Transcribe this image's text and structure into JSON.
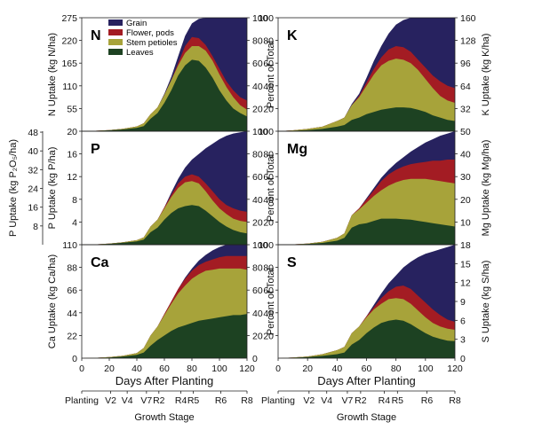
{
  "legend": [
    {
      "name": "Grain",
      "color": "#27225f"
    },
    {
      "name": "Flower, pods",
      "color": "#a31c23"
    },
    {
      "name": "Stem petioles",
      "color": "#a7a33a"
    },
    {
      "name": "Leaves",
      "color": "#1d4222"
    }
  ],
  "chart_data": {
    "type": "area",
    "x_label": "Days After Planting",
    "x_ticks": [
      0,
      20,
      40,
      60,
      80,
      100,
      120
    ],
    "percent_axis": {
      "label": "Percent of Total",
      "ticks": [
        0,
        20,
        40,
        60,
        80,
        100
      ]
    },
    "growth_stage": {
      "label": "Growth Stage",
      "stages": [
        {
          "name": "Planting",
          "day": 0
        },
        {
          "name": "V2",
          "day": 21
        },
        {
          "name": "V4",
          "day": 33
        },
        {
          "name": "V7",
          "day": 47
        },
        {
          "name": "R2",
          "day": 56
        },
        {
          "name": "R4",
          "day": 72
        },
        {
          "name": "R5",
          "day": 81
        },
        {
          "name": "R6",
          "day": 101
        },
        {
          "name": "R8",
          "day": 120
        }
      ]
    },
    "days": [
      0,
      10,
      20,
      30,
      40,
      45,
      50,
      55,
      60,
      65,
      70,
      75,
      80,
      85,
      90,
      95,
      100,
      105,
      110,
      115,
      120
    ],
    "panels": [
      {
        "id": "N",
        "title": "N",
        "left_label": "N Uptake (kg N/ha)",
        "left_ticks": [
          "55",
          "110",
          "165",
          "220",
          "275"
        ],
        "leaves": [
          0,
          0.3,
          0.8,
          1.6,
          3,
          4.5,
          11,
          16,
          25,
          36,
          49,
          58,
          63,
          62,
          56,
          47,
          36,
          27,
          20,
          16,
          13
        ],
        "stem": [
          0,
          0.4,
          1,
          2.2,
          4.2,
          7,
          15,
          21,
          32,
          45,
          58,
          69,
          75,
          75,
          71,
          62,
          50,
          39,
          30,
          23,
          19
        ],
        "flower": [
          0,
          0.4,
          1,
          2.2,
          4.2,
          7,
          15,
          21,
          32,
          45,
          60,
          75,
          83,
          82,
          76,
          66,
          55,
          44,
          36,
          30,
          27
        ],
        "grain": [
          0,
          0.4,
          1,
          2.2,
          4.2,
          7,
          15,
          21,
          33,
          48,
          66,
          84,
          95,
          99,
          100,
          100,
          100,
          100,
          100,
          100,
          100
        ]
      },
      {
        "id": "K",
        "title": "K",
        "left_ticks": [
          "20",
          "40",
          "60",
          "80",
          "100"
        ],
        "right_label": "K Uptake (kg K/ha)",
        "right_ticks": [
          "32",
          "64",
          "96",
          "128",
          "160"
        ],
        "leaves": [
          0,
          0.4,
          1,
          2,
          4,
          5.5,
          10,
          12,
          15,
          17,
          19,
          20,
          21,
          21,
          20.5,
          19,
          17,
          14,
          12,
          10,
          9
        ],
        "stem": [
          0,
          0.8,
          2,
          4,
          9,
          12,
          23,
          30,
          40,
          50,
          58,
          62,
          64,
          63,
          60,
          54,
          46,
          38,
          31,
          27,
          25
        ],
        "flower": [
          0,
          0.8,
          2,
          4,
          9,
          12,
          23,
          31,
          43,
          55,
          65,
          72,
          75,
          74,
          70,
          63,
          56,
          49,
          44,
          40,
          38
        ],
        "grain": [
          0,
          0.8,
          2,
          4,
          9,
          12,
          24,
          33,
          47,
          62,
          75,
          86,
          94,
          98,
          100,
          100,
          100,
          100,
          100,
          100,
          100
        ]
      },
      {
        "id": "P",
        "title": "P",
        "left_label": "P Uptake (kg P/ha)",
        "left_ticks": [
          "4",
          "8",
          "12",
          "16",
          "20"
        ],
        "outer_label": "P Uptake (kg P₂O₅/ha)",
        "outer_ticks": [
          "8",
          "16",
          "24",
          "32",
          "40",
          "48"
        ],
        "leaves": [
          0,
          0.2,
          0.8,
          1.7,
          3,
          4.5,
          11,
          15,
          22,
          28,
          32,
          34,
          35,
          34,
          30,
          25,
          20,
          16,
          13,
          11,
          10
        ],
        "stem": [
          0,
          0.3,
          1,
          2.2,
          4,
          6.5,
          16,
          22,
          32,
          42,
          50,
          55,
          56,
          54,
          47,
          39,
          32,
          27,
          23,
          21,
          20
        ],
        "flower": [
          0,
          0.3,
          1,
          2.2,
          4,
          6.5,
          16,
          22,
          33,
          44,
          54,
          60,
          62,
          60,
          54,
          47,
          40,
          35,
          32,
          30,
          29
        ],
        "grain": [
          0,
          0.3,
          1,
          2.2,
          4,
          6.5,
          16,
          22,
          33,
          46,
          58,
          68,
          75,
          80,
          85,
          89,
          93,
          96,
          98,
          99,
          100
        ]
      },
      {
        "id": "Mg",
        "title": "Mg",
        "left_ticks": [
          "20",
          "40",
          "60",
          "80",
          "100"
        ],
        "right_label": "Mg Uptake (kg Mg/ha)",
        "right_ticks": [
          "10",
          "20",
          "30",
          "40",
          "50"
        ],
        "leaves": [
          0,
          0.2,
          0.7,
          1.6,
          3.5,
          6,
          15,
          18,
          19,
          21,
          23,
          23,
          23,
          22.5,
          22,
          21,
          20,
          19,
          18,
          17,
          16
        ],
        "stem": [
          0,
          0.3,
          1,
          2.5,
          6,
          10,
          26,
          31,
          37,
          43,
          48,
          52,
          55,
          57,
          58,
          58,
          58,
          57,
          56,
          55,
          54
        ],
        "flower": [
          0,
          0.3,
          1,
          2.5,
          6,
          10,
          26,
          32,
          40,
          48,
          56,
          62,
          66,
          69,
          71,
          72,
          73,
          74,
          74,
          75,
          75
        ],
        "grain": [
          0,
          0.3,
          1,
          2.5,
          6,
          10,
          26,
          32,
          41,
          50,
          59,
          66,
          72,
          77,
          82,
          86,
          90,
          93,
          96,
          98,
          100
        ]
      },
      {
        "id": "Ca",
        "title": "Ca",
        "left_label": "Ca Uptake (kg Ca/ha)",
        "left_ticks": [
          "22",
          "44",
          "66",
          "88",
          "110"
        ],
        "leaves": [
          0,
          0.2,
          0.6,
          1.5,
          3,
          5,
          11,
          16,
          20,
          24,
          27,
          29,
          31,
          33,
          34,
          35,
          36,
          37,
          38,
          38,
          39
        ],
        "stem": [
          0,
          0.3,
          1,
          2.2,
          4.5,
          9,
          20,
          28,
          38,
          48,
          57,
          64,
          70,
          74,
          77,
          78,
          79,
          79,
          79,
          79,
          78
        ],
        "flower": [
          0,
          0.3,
          1,
          2.2,
          4.5,
          9,
          20,
          28,
          39,
          50,
          61,
          70,
          77,
          82,
          85,
          87,
          89,
          90,
          90,
          90,
          90
        ],
        "grain": [
          0,
          0.3,
          1,
          2.2,
          4.5,
          9,
          20,
          28,
          39,
          50,
          61,
          71,
          79,
          86,
          91,
          95,
          98,
          100,
          100,
          100,
          100
        ]
      },
      {
        "id": "S",
        "title": "S",
        "left_ticks": [
          "20",
          "40",
          "60",
          "80",
          "100"
        ],
        "right_label": "S Uptake (kg S/ha)",
        "right_ticks": [
          "3",
          "6",
          "9",
          "12",
          "15",
          "18"
        ],
        "leaves": [
          0,
          0.4,
          1,
          2,
          3.5,
          5,
          12,
          16,
          22,
          27,
          31,
          33,
          34,
          33,
          30,
          26,
          22,
          19,
          17,
          15.5,
          15
        ],
        "stem": [
          0,
          0.6,
          1.5,
          3.5,
          7,
          10,
          22,
          28,
          36,
          43,
          48,
          52,
          53,
          52,
          48,
          42,
          36,
          31,
          28,
          26,
          25
        ],
        "flower": [
          0,
          0.6,
          1.5,
          3.5,
          7,
          10,
          22,
          28,
          37,
          45,
          53,
          59,
          63,
          64,
          61,
          55,
          49,
          43,
          38,
          34,
          32
        ],
        "grain": [
          0,
          0.6,
          1.5,
          3.5,
          7,
          10,
          22,
          28,
          37,
          47,
          57,
          66,
          73,
          80,
          85,
          89,
          92,
          94,
          96,
          98,
          100
        ]
      }
    ]
  }
}
